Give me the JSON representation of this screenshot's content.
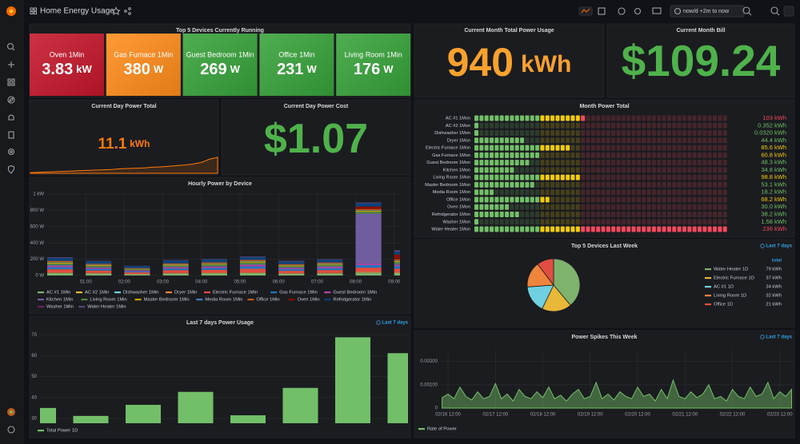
{
  "header": {
    "title": "Home Energy Usage",
    "time_range": "now/d +2m to now"
  },
  "panels": {
    "top_devices": {
      "type": "stat_tiles",
      "title": "Top 5 Devices Currently Running",
      "stats": [
        {
          "name": "Oven 1Min",
          "value": 3.83,
          "unit": "kW",
          "color": "#c4162a"
        },
        {
          "name": "Gas Furnace 1Min",
          "value": 380,
          "unit": "W",
          "color": "#ff8c1a"
        },
        {
          "name": "Guest Bedroom 1Min",
          "value": 269,
          "unit": "W",
          "color": "#37a23a"
        },
        {
          "name": "Office 1Min",
          "value": 231,
          "unit": "W",
          "color": "#37a23a"
        },
        {
          "name": "Living Room 1Min",
          "value": 176,
          "unit": "W",
          "color": "#37a23a"
        }
      ]
    },
    "month_usage": {
      "type": "stat",
      "title": "Current Month Total Power Usage",
      "value": 940,
      "unit": "kWh",
      "color": "#f9a12e"
    },
    "month_bill": {
      "type": "stat",
      "title": "Current Month Bill",
      "prefix": "$",
      "value": 109.24,
      "color": "#4fb24b"
    },
    "day_total": {
      "type": "stat",
      "title": "Current Day Power Total",
      "value": 11.1,
      "unit": "kWh",
      "color": "#ff780a",
      "sparkline": [
        0.2,
        0.3,
        0.4,
        0.5,
        0.6,
        0.7,
        0.8,
        0.9,
        1.0,
        1.1,
        1.2,
        1.4,
        1.5,
        1.6,
        1.7,
        1.9,
        2.0,
        2.2,
        2.4,
        2.6,
        2.9,
        3.4,
        4.4,
        5.0
      ]
    },
    "day_cost": {
      "type": "stat",
      "title": "Current Day Power Cost",
      "prefix": "$",
      "value": 1.07,
      "color": "#4fb24b"
    },
    "month_total": {
      "type": "bar_gauge",
      "title": "Month Power Total",
      "categories": [
        "AC #1 1Mon",
        "AC #2 1Mon",
        "Dishwasher 1Mon",
        "Dryer 1Mon",
        "Electric Furnace 1Mon",
        "Gas Furnace 1Mon",
        "Guest Bedroom 1Mon",
        "Kitchen 1Mon",
        "Living Room 1Mon",
        "Master Bedroom 1Mon",
        "Media Room 1Mon",
        "Office 1Mon",
        "Oven 1Mon",
        "Refridgerator 1Mon",
        "Washer 1Mon",
        "Water Heater 1Mon"
      ],
      "values": [
        103,
        0.352,
        0.032,
        44.4,
        85.6,
        60.8,
        48.3,
        34.8,
        98.8,
        53.1,
        18.2,
        68.2,
        30.0,
        38.2,
        1.58,
        236
      ],
      "value_labels": [
        "103 kWh",
        "0.352 kWh",
        "0.0320 kWh",
        "44.4 kWh",
        "85.6 kWh",
        "60.8 kWh",
        "48.3 kWh",
        "34.8 kWh",
        "98.8 kWh",
        "53.1 kWh",
        "18.2 kWh",
        "68.2 kWh",
        "30.0 kWh",
        "38.2 kWh",
        "1.58 kWh",
        "236 kWh"
      ],
      "base_color": "#73bf69",
      "thresholds": [
        {
          "value": 60,
          "color": "#f2cc0c"
        },
        {
          "value": 100,
          "color": "#f2495c"
        }
      ]
    },
    "hourly": {
      "type": "bar",
      "stacked": true,
      "title": "Hourly Power by Device",
      "x": [
        "00:00",
        "01:00",
        "02:00",
        "03:00",
        "04:00",
        "05:00",
        "06:00",
        "07:00",
        "08:00",
        "09:00"
      ],
      "xlim": [
        "00:00",
        "09:09"
      ],
      "xticks": [
        "01:00",
        "02:00",
        "03:00",
        "04:00",
        "05:00",
        "06:00",
        "07:00",
        "08:00",
        "09:00"
      ],
      "ylim": [
        0,
        1000
      ],
      "yticks": [
        {
          "value": 0,
          "label": "0 W"
        },
        {
          "value": 200,
          "label": "200 W"
        },
        {
          "value": 400,
          "label": "400 W"
        },
        {
          "value": 600,
          "label": "600 W"
        },
        {
          "value": 800,
          "label": "800 W"
        },
        {
          "value": 1000,
          "label": "1 kW"
        }
      ],
      "grid": true,
      "series": [
        {
          "name": "AC #1 1Min",
          "color": "#7eb26d",
          "values": [
            30,
            25,
            15,
            25,
            28,
            30,
            22,
            25,
            35,
            30
          ]
        },
        {
          "name": "AC #2 1Min",
          "color": "#eab839",
          "values": [
            2,
            2,
            1,
            2,
            2,
            2,
            2,
            2,
            2,
            2
          ]
        },
        {
          "name": "Dishwasher 1Min",
          "color": "#6ed0e0",
          "values": [
            0,
            0,
            0,
            0,
            0,
            0,
            0,
            0,
            0,
            0
          ]
        },
        {
          "name": "Dryer 1Min",
          "color": "#ef843c",
          "values": [
            5,
            4,
            3,
            4,
            5,
            6,
            4,
            5,
            10,
            8
          ]
        },
        {
          "name": "Electric Furnace 1Min",
          "color": "#e24d42",
          "values": [
            40,
            30,
            20,
            35,
            35,
            45,
            30,
            35,
            50,
            45
          ]
        },
        {
          "name": "Gas Furnace 1Min",
          "color": "#1f78c1",
          "values": [
            25,
            20,
            12,
            20,
            22,
            28,
            20,
            22,
            30,
            30
          ]
        },
        {
          "name": "Guest Bedroom 1Min",
          "color": "#ba43a9",
          "values": [
            15,
            12,
            8,
            12,
            14,
            16,
            12,
            14,
            18,
            15
          ]
        },
        {
          "name": "Kitchen 1Min",
          "color": "#705da0",
          "values": [
            10,
            8,
            6,
            8,
            10,
            10,
            8,
            10,
            614,
            12
          ]
        },
        {
          "name": "Living Room 1Min",
          "color": "#508642",
          "values": [
            20,
            16,
            10,
            16,
            18,
            22,
            16,
            18,
            25,
            25
          ]
        },
        {
          "name": "Master Bedroom 1Min",
          "color": "#cca300",
          "values": [
            12,
            10,
            6,
            10,
            10,
            12,
            10,
            10,
            12,
            10
          ]
        },
        {
          "name": "Media Room 1Min",
          "color": "#447ebc",
          "values": [
            6,
            5,
            3,
            5,
            6,
            6,
            5,
            6,
            6,
            6
          ]
        },
        {
          "name": "Office 1Min",
          "color": "#c15c17",
          "values": [
            15,
            12,
            8,
            12,
            13,
            15,
            12,
            13,
            15,
            15
          ]
        },
        {
          "name": "Oven 1Min",
          "color": "#890f02",
          "values": [
            0,
            0,
            0,
            0,
            0,
            0,
            0,
            0,
            30,
            60
          ]
        },
        {
          "name": "Refridgerator 1Min",
          "color": "#0a437c",
          "values": [
            35,
            30,
            25,
            35,
            32,
            35,
            30,
            32,
            40,
            35
          ]
        },
        {
          "name": "Washer 1Min",
          "color": "#6d1f62",
          "values": [
            0,
            0,
            0,
            0,
            0,
            0,
            0,
            0,
            0,
            0
          ]
        },
        {
          "name": "Water Heater 1Min",
          "color": "#584477",
          "values": [
            10,
            6,
            3,
            6,
            7,
            8,
            9,
            8,
            10,
            17
          ]
        }
      ]
    },
    "top_week": {
      "type": "pie",
      "title": "Top 5 Devices Last Week",
      "time_override": "Last 7 days",
      "legend_value_header": "total",
      "categories": [
        "Water Heater 1D",
        "Electric Furnace 1D",
        "AC #1 1D",
        "Living Room 1D",
        "Office 1D"
      ],
      "values": [
        79,
        37,
        34,
        32,
        21
      ],
      "value_labels": [
        "79 kWh",
        "37 kWh",
        "34 kWh",
        "32 kWh",
        "21 kWh"
      ],
      "colors": [
        "#7eb26d",
        "#eab839",
        "#6ed0e0",
        "#ef843c",
        "#e24d42"
      ]
    },
    "last7": {
      "type": "bar",
      "title": "Last 7 days Power Usage",
      "time_override": "Last 7 days",
      "ylim": [
        27.7,
        72
      ],
      "yticks": [
        30,
        40,
        50,
        60,
        70
      ],
      "grid": true,
      "series": [
        {
          "name": "Total Power 1D",
          "color": "#73bf69",
          "values": [
            35,
            31.2,
            36.5,
            42.7,
            31.5,
            44.6,
            68.8,
            61.2
          ]
        }
      ]
    },
    "spikes": {
      "type": "area",
      "title": "Power Spikes This Week",
      "time_override": "Last 7 days",
      "x": [
        "02/16 09:00",
        "02/16 12:00",
        "02/16 15:00",
        "02/16 18:00",
        "02/16 21:00",
        "02/17 00:00",
        "02/17 03:00",
        "02/17 06:00",
        "02/17 09:00",
        "02/17 12:00",
        "02/17 15:00",
        "02/17 18:00",
        "02/17 21:00",
        "02/18 00:00",
        "02/18 03:00",
        "02/18 06:00",
        "02/18 09:00",
        "02/18 12:00",
        "02/18 15:00",
        "02/18 18:00",
        "02/18 21:00",
        "02/19 00:00",
        "02/19 03:00",
        "02/19 06:00",
        "02/19 09:00",
        "02/19 12:00",
        "02/19 15:00",
        "02/19 18:00",
        "02/19 21:00",
        "02/20 00:00",
        "02/20 03:00",
        "02/20 06:00",
        "02/20 09:00",
        "02/20 12:00",
        "02/20 15:00",
        "02/20 18:00",
        "02/20 21:00",
        "02/21 00:00",
        "02/21 03:00",
        "02/21 06:00",
        "02/21 09:00",
        "02/21 12:00",
        "02/21 15:00",
        "02/21 18:00",
        "02/21 21:00",
        "02/22 00:00",
        "02/22 03:00",
        "02/22 06:00",
        "02/22 09:00",
        "02/22 12:00",
        "02/22 15:00",
        "02/22 18:00",
        "02/22 21:00",
        "02/23 00:00",
        "02/23 03:00",
        "02/23 06:00",
        "02/23 09:00",
        "02/23 12:00",
        "02/23 15:00",
        "02/23 18:00"
      ],
      "xlim": [
        "02/16 08:20",
        "02/23 19:00"
      ],
      "xticks": [
        "02/16 12:00",
        "02/17 12:00",
        "02/18 12:00",
        "02/19 12:00",
        "02/20 12:00",
        "02/21 12:00",
        "02/22 12:00",
        "02/23 12:00"
      ],
      "ylim": [
        0,
        0.0025
      ],
      "yticks": [
        0,
        {
          "value": 0.001,
          "label": "0.00100"
        },
        {
          "value": 0.002,
          "label": "0.00200"
        }
      ],
      "grid": true,
      "series": [
        {
          "name": "Rate of Power",
          "color": "#73bf69",
          "values": [
            0.00045,
            0.0006,
            0.0004,
            0.0009,
            0.0005,
            0.00035,
            0.0007,
            0.0004,
            0.0005,
            0.00105,
            0.0004,
            0.0006,
            0.0003,
            0.0008,
            0.0005,
            0.0004,
            0.0007,
            0.00045,
            0.0009,
            0.0004,
            0.00055,
            0.0003,
            0.0006,
            0.0008,
            0.0004,
            0.0005,
            0.0011,
            0.0004,
            0.0006,
            0.00035,
            0.0007,
            0.0005,
            0.0004,
            0.0009,
            0.0005,
            0.0006,
            0.0003,
            0.0008,
            0.0004,
            0.0012,
            0.0005,
            0.0004,
            0.0007,
            0.00045,
            0.0006,
            0.001,
            0.0004,
            0.0005,
            0.0003,
            0.0008,
            0.0005,
            0.0004,
            0.0009,
            0.0005,
            0.0006,
            0.0011,
            0.0004,
            0.0007,
            0.0005,
            0.0008
          ]
        }
      ]
    }
  }
}
